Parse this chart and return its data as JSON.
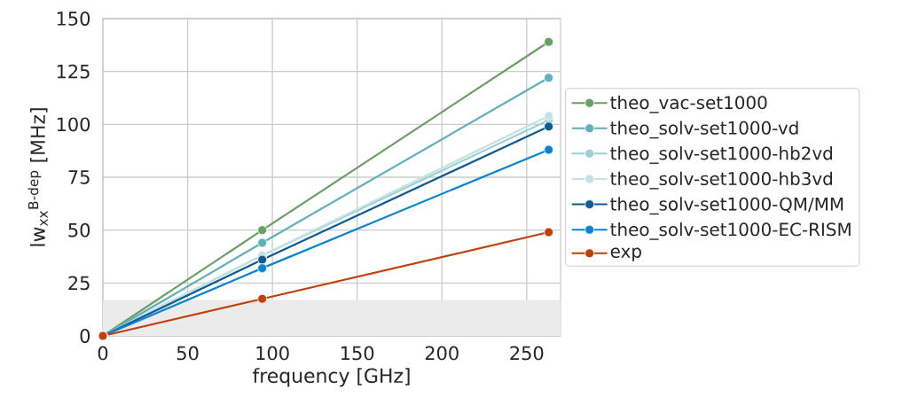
{
  "chart_data": {
    "type": "line",
    "xlabel": "frequency [GHz]",
    "ylabel": "lw$_{xx}$$^{B-dep}$ [MHz]",
    "x": [
      0,
      94,
      263
    ],
    "series": [
      {
        "name": "theo_vac-set1000",
        "color": "#6a9f64",
        "values": [
          0,
          50,
          139
        ]
      },
      {
        "name": "theo_solv-set1000-vd",
        "color": "#5fb0b8",
        "values": [
          0,
          44,
          122
        ]
      },
      {
        "name": "theo_solv-set1000-hb2vd",
        "color": "#9ecfd3",
        "values": [
          0,
          38,
          102
        ]
      },
      {
        "name": "theo_solv-set1000-hb3vd",
        "color": "#c3e2e3",
        "values": [
          0,
          38,
          104
        ]
      },
      {
        "name": "theo_solv-set1000-QM/MM",
        "color": "#0e5a92",
        "values": [
          0,
          36,
          99
        ]
      },
      {
        "name": "theo_solv-set1000-EC-RISM",
        "color": "#0a84d3",
        "values": [
          0,
          32,
          88
        ]
      },
      {
        "name": "exp",
        "color": "#c0400b",
        "values": [
          0,
          17.5,
          49
        ]
      }
    ],
    "xlim": [
      0,
      270
    ],
    "ylim": [
      0,
      150
    ],
    "xticks": [
      0,
      50,
      100,
      150,
      200,
      250
    ],
    "yticks": [
      0,
      25,
      50,
      75,
      100,
      125,
      150
    ],
    "bands": [
      {
        "axis": "y",
        "from": 0,
        "to": 17,
        "color": "#ebebeb"
      }
    ],
    "grid": true,
    "legend": "right",
    "marker": "circle",
    "line_style": "solid"
  }
}
